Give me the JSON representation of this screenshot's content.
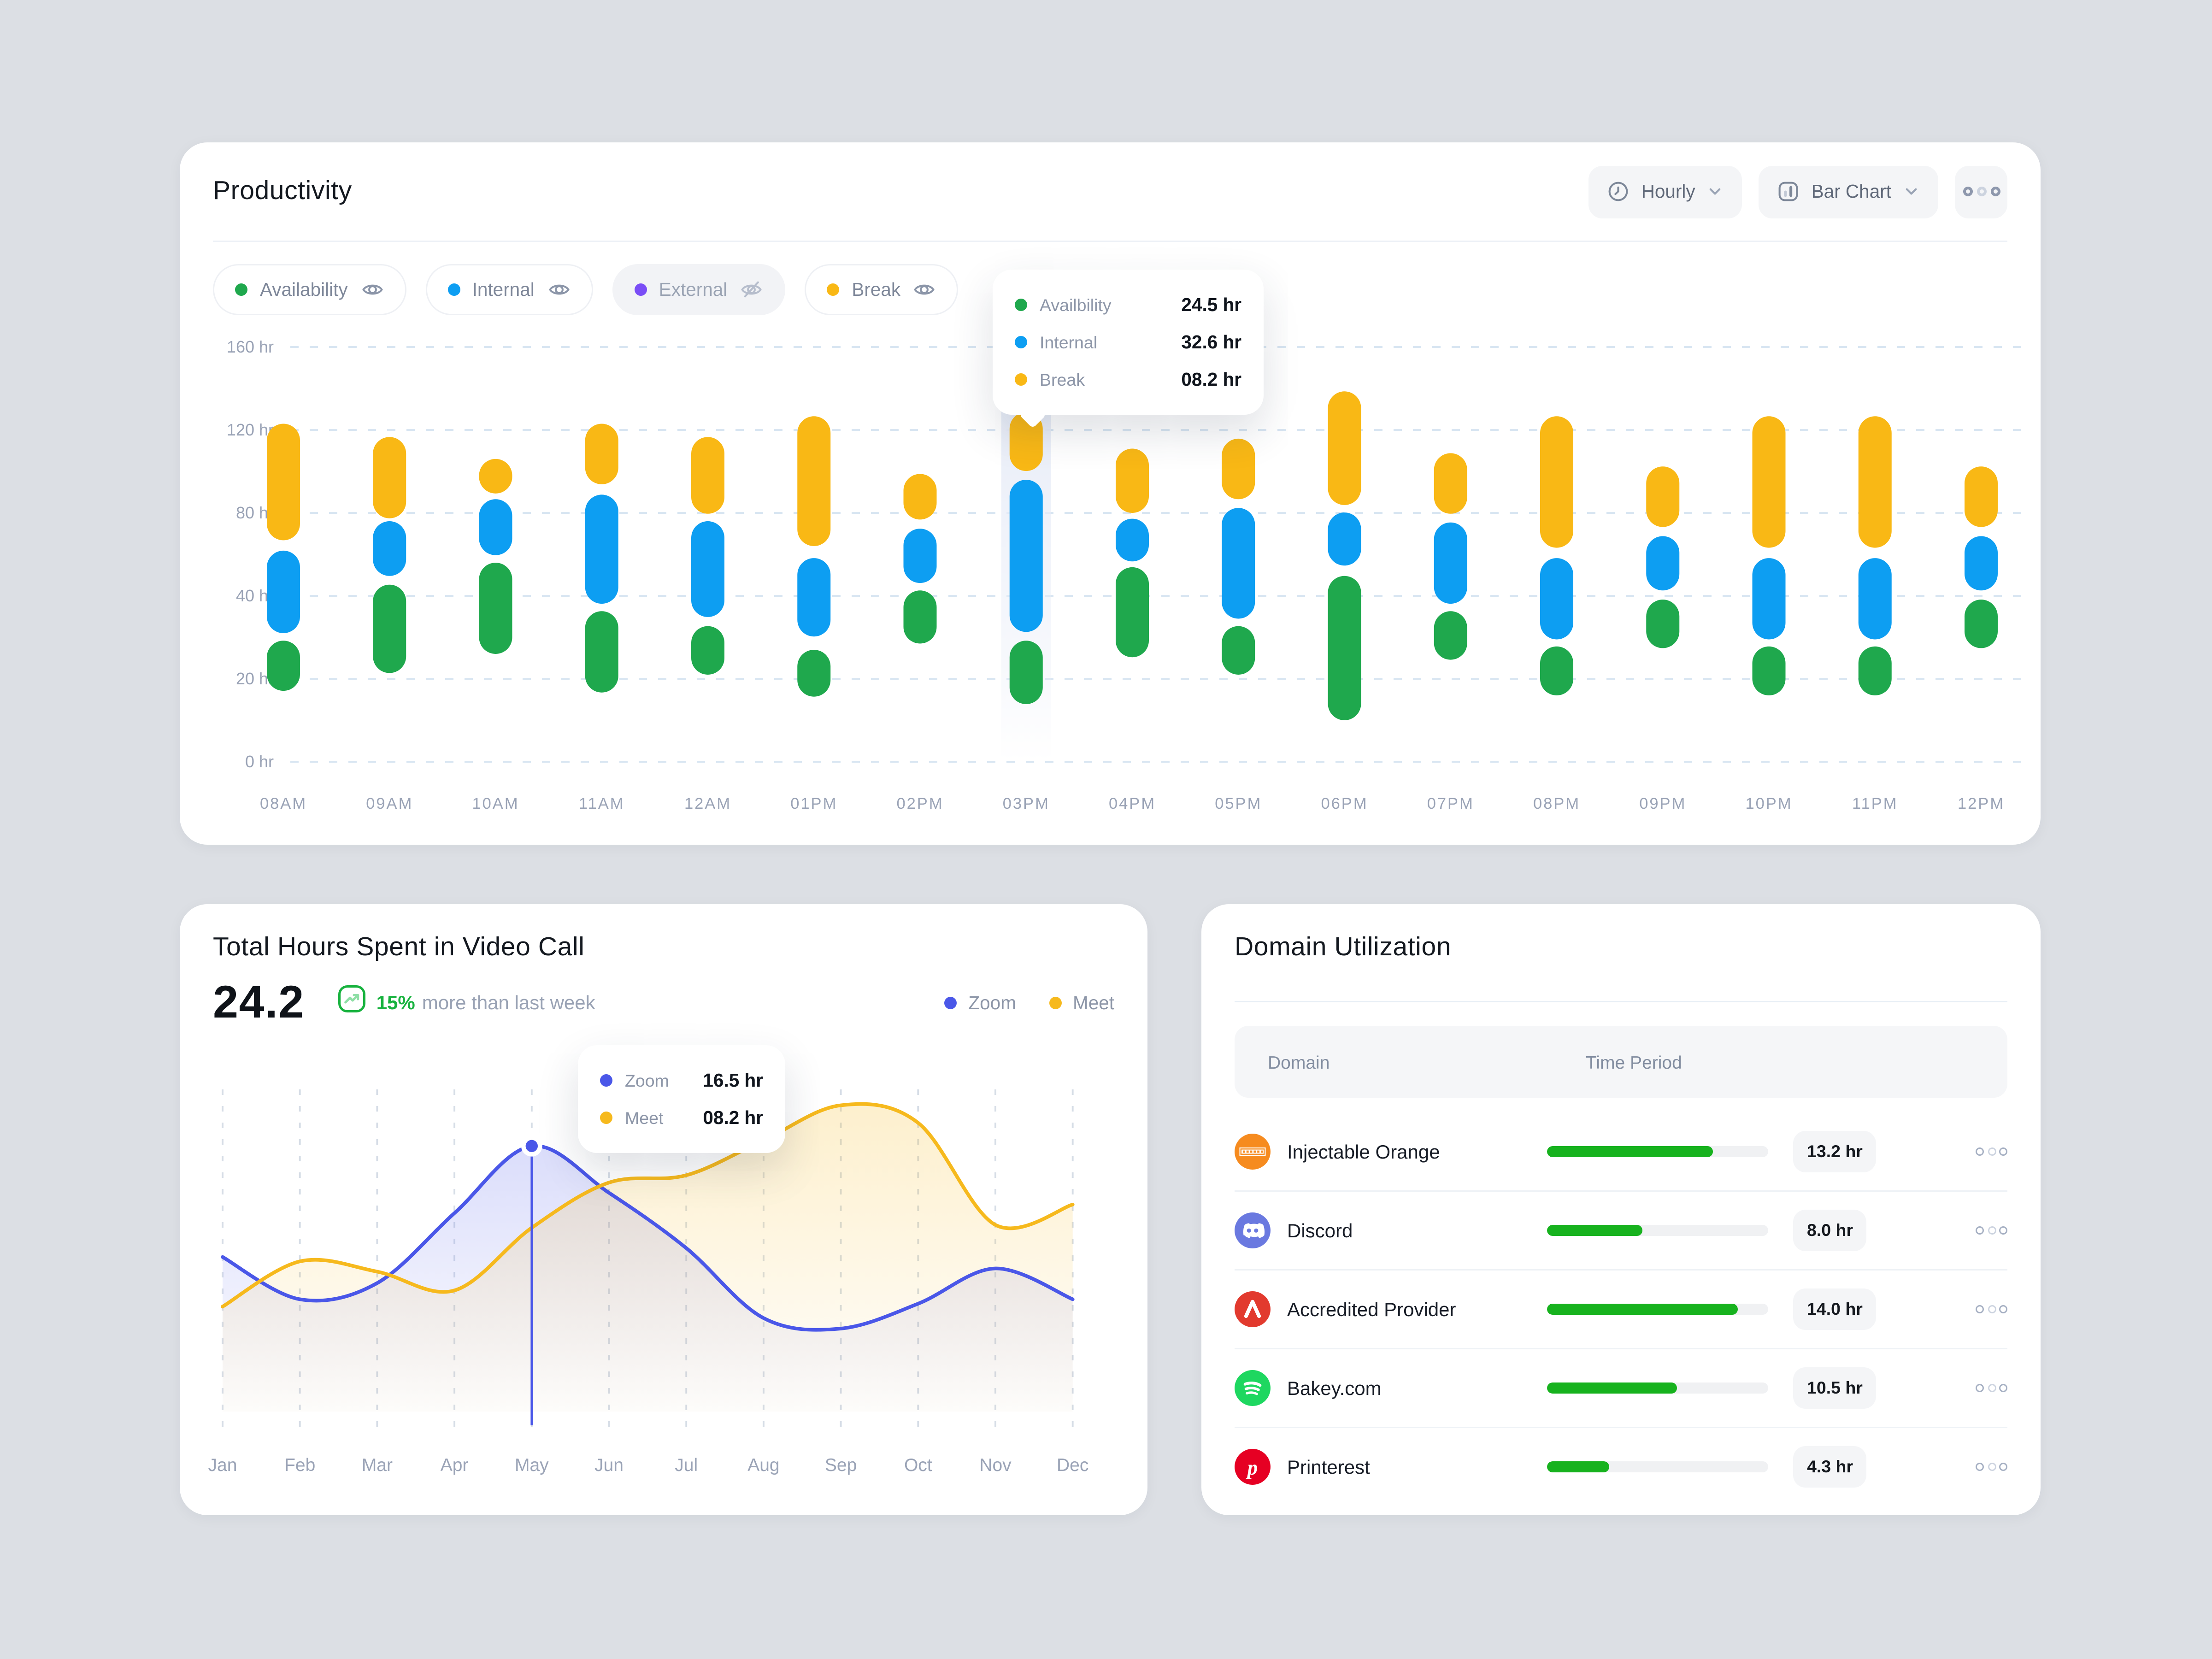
{
  "productivity": {
    "title": "Productivity",
    "controls": {
      "period_label": "Hourly",
      "chart_type_label": "Bar Chart"
    },
    "filters": [
      {
        "label": "Availability",
        "color": "#1FA84D",
        "visible": true
      },
      {
        "label": "Internal",
        "color": "#0D9EF2",
        "visible": true
      },
      {
        "label": "External",
        "color": "#7A4DF6",
        "visible": false
      },
      {
        "label": "Break",
        "color": "#F9B815",
        "visible": true
      }
    ],
    "tooltip": {
      "rows": [
        {
          "label": "Availbility",
          "value": "24.5 hr",
          "color": "#1FA84D"
        },
        {
          "label": "Internal",
          "value": "32.6 hr",
          "color": "#0D9EF2"
        },
        {
          "label": "Break",
          "value": "08.2 hr",
          "color": "#F9B815"
        }
      ]
    },
    "chart_data": {
      "type": "bar",
      "subtype": "floating-segment-columns",
      "y_ticks": [
        "160 hr",
        "120 hr",
        "80 hr",
        "40 hr",
        "20 hr",
        "0 hr"
      ],
      "categories": [
        "08AM",
        "09AM",
        "10AM",
        "11AM",
        "12AM",
        "01PM",
        "02PM",
        "03PM",
        "04PM",
        "05PM",
        "06PM",
        "07PM",
        "08PM",
        "09PM",
        "10PM",
        "11PM",
        "12PM"
      ],
      "highlighted_category": "03PM",
      "grid": "horizontal-dashed",
      "series": [
        {
          "name": "Break",
          "color": "#F9B815",
          "segments_pct": [
            [
              81.5,
              53.4
            ],
            [
              78.3,
              58.7
            ],
            [
              72.6,
              65.1
            ],
            [
              81.5,
              66.9
            ],
            [
              78.3,
              59.8
            ],
            [
              83.3,
              52.0
            ],
            [
              69.4,
              58.4
            ],
            [
              84.3,
              70.1
            ],
            [
              75.5,
              60.0
            ],
            [
              77.9,
              63.3
            ],
            [
              89.3,
              61.9
            ],
            [
              74.4,
              59.8
            ],
            [
              83.3,
              51.6
            ],
            [
              71.2,
              56.6
            ],
            [
              83.3,
              51.6
            ],
            [
              83.3,
              51.6
            ],
            [
              71.2,
              56.6
            ]
          ]
        },
        {
          "name": "Internal",
          "color": "#0D9EF2",
          "segments_pct": [
            [
              50.9,
              31.0
            ],
            [
              58.0,
              44.8
            ],
            [
              63.3,
              49.8
            ],
            [
              64.4,
              38.1
            ],
            [
              58.0,
              34.9
            ],
            [
              49.1,
              30.2
            ],
            [
              56.2,
              43.1
            ],
            [
              68.0,
              31.3
            ],
            [
              58.6,
              48.3
            ],
            [
              61.2,
              34.5
            ],
            [
              60.1,
              47.3
            ],
            [
              57.7,
              38.1
            ],
            [
              49.1,
              29.5
            ],
            [
              54.4,
              41.3
            ],
            [
              49.1,
              29.5
            ],
            [
              49.1,
              29.5
            ],
            [
              54.4,
              41.3
            ]
          ]
        },
        {
          "name": "Availability",
          "color": "#1FA84D",
          "segments_pct": [
            [
              29.2,
              17.1
            ],
            [
              42.7,
              21.4
            ],
            [
              48.0,
              26.0
            ],
            [
              36.3,
              16.7
            ],
            [
              32.7,
              21.0
            ],
            [
              27.0,
              15.7
            ],
            [
              41.3,
              28.5
            ],
            [
              29.2,
              13.9
            ],
            [
              46.9,
              25.2
            ],
            [
              32.7,
              21.0
            ],
            [
              44.8,
              10.0
            ],
            [
              36.3,
              24.6
            ],
            [
              27.8,
              16.0
            ],
            [
              39.1,
              27.4
            ],
            [
              27.8,
              16.0
            ],
            [
              27.8,
              16.0
            ],
            [
              39.1,
              27.4
            ]
          ]
        }
      ]
    }
  },
  "video_call": {
    "title": "Total Hours Spent in Video Call",
    "metric": {
      "value": "24.2",
      "delta": "15%",
      "delta_suffix": "more than last week"
    },
    "legend": [
      {
        "label": "Zoom",
        "color": "#4A57E8"
      },
      {
        "label": "Meet",
        "color": "#F6B91D"
      }
    ],
    "tooltip": {
      "rows": [
        {
          "label": "Zoom",
          "value": "16.5 hr",
          "color": "#4A57E8"
        },
        {
          "label": "Meet",
          "value": "08.2 hr",
          "color": "#F6B91D"
        }
      ]
    },
    "chart_data": {
      "type": "area",
      "x": [
        "Jan",
        "Feb",
        "Mar",
        "Apr",
        "May",
        "Jun",
        "Jul",
        "Aug",
        "Sep",
        "Oct",
        "Nov",
        "Dec"
      ],
      "grid": "vertical-dashed",
      "series": [
        {
          "name": "Zoom",
          "color": "#4A57E8",
          "values_pct": [
            48.6,
            35.3,
            40.4,
            62.4,
            83.5,
            68.8,
            51.4,
            29.4,
            26.1,
            33.9,
            45.0,
            35.3
          ]
        },
        {
          "name": "Meet",
          "color": "#F6B91D",
          "values_pct": [
            33.0,
            47.2,
            44.0,
            38.1,
            57.8,
            72.0,
            74.3,
            85.3,
            96.3,
            90.8,
            58.7,
            65.1
          ]
        }
      ],
      "marker": {
        "x": "May",
        "series": "Zoom"
      }
    }
  },
  "domain_utilization": {
    "title": "Domain Utilization",
    "columns": [
      "Domain",
      "Time Period"
    ],
    "progress_color": "#17B21E",
    "rows": [
      {
        "name": "Injectable Orange",
        "icon": "injectable-orange-icon",
        "icon_color": "#F68B1F",
        "hours": "13.2 hr",
        "progress_pct": 75
      },
      {
        "name": "Discord",
        "icon": "discord-icon",
        "icon_color": "#6A79E0",
        "hours": "8.0 hr",
        "progress_pct": 43
      },
      {
        "name": "Accredited Provider",
        "icon": "accredited-provider-icon",
        "icon_color": "#E23A2E",
        "hours": "14.0 hr",
        "progress_pct": 86
      },
      {
        "name": "Bakey.com",
        "icon": "bakey-icon",
        "icon_color": "#1ED760",
        "hours": "10.5 hr",
        "progress_pct": 59
      },
      {
        "name": "Printerest",
        "icon": "printerest-icon",
        "icon_color": "#E60023",
        "hours": "4.3 hr",
        "progress_pct": 28
      }
    ]
  }
}
